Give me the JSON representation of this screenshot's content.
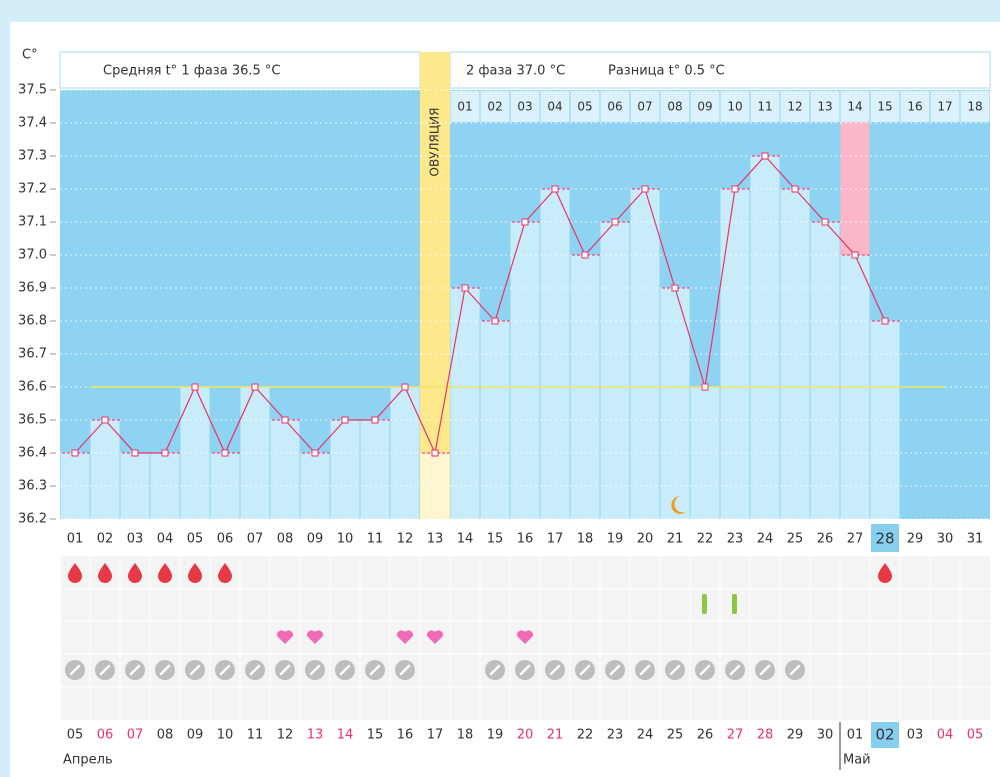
{
  "chart_data": {
    "type": "line",
    "y_label": "C°",
    "categories": [
      "01",
      "02",
      "03",
      "04",
      "05",
      "06",
      "07",
      "08",
      "09",
      "10",
      "11",
      "12",
      "13",
      "14",
      "15",
      "16",
      "17",
      "18",
      "19",
      "20",
      "21",
      "22",
      "23",
      "24",
      "25",
      "26",
      "27",
      "28",
      "29",
      "30",
      "31"
    ],
    "values": [
      36.4,
      36.5,
      36.4,
      36.4,
      36.6,
      36.4,
      36.6,
      36.5,
      36.4,
      36.5,
      36.5,
      36.6,
      36.4,
      36.9,
      36.8,
      37.1,
      37.2,
      37.0,
      37.1,
      37.2,
      36.9,
      36.6,
      37.2,
      37.3,
      37.2,
      37.1,
      37.0,
      36.8,
      null,
      null,
      null
    ],
    "color": "#e8336a",
    "ylim": [
      36.2,
      37.5
    ],
    "yticks": [
      37.5,
      37.4,
      37.3,
      37.2,
      37.1,
      {
        "value": 37.0,
        "label": "37.0"
      },
      36.9,
      36.8,
      36.7,
      36.6,
      36.5,
      36.4,
      36.3,
      36.2
    ],
    "grid": true,
    "coverline": 36.6,
    "ovulation_day": "13",
    "ovulation_label": "ОВУЛЯЦИЯ",
    "phase2_days": [
      "01",
      "02",
      "03",
      "04",
      "05",
      "06",
      "07",
      "08",
      "09",
      "10",
      "11",
      "12",
      "13",
      "14",
      "15",
      "16",
      "17",
      "18"
    ],
    "phase2_highlight": "14",
    "today": "28"
  },
  "header": {
    "phase1": "Средняя t° 1 фаза 36.5 °C",
    "phase2": "2 фаза 37.0 °C",
    "difference": "Разница t° 0.5 °C"
  },
  "marks": {
    "menstruation": [
      "01",
      "02",
      "03",
      "04",
      "05",
      "06",
      "28"
    ],
    "tests": [
      "22",
      "23"
    ],
    "intercourse": [
      "08",
      "09",
      "12",
      "13",
      "16"
    ],
    "pills": [
      "01",
      "02",
      "03",
      "04",
      "05",
      "06",
      "07",
      "08",
      "09",
      "10",
      "11",
      "12",
      "15",
      "16",
      "17",
      "18",
      "19",
      "20",
      "21",
      "22",
      "23",
      "24",
      "25"
    ]
  },
  "calendar": [
    {
      "name": "Апрель",
      "dates": [
        {
          "label": "05",
          "red": false
        },
        {
          "label": "06",
          "red": true
        },
        {
          "label": "07",
          "red": true
        },
        {
          "label": "08",
          "red": false
        },
        {
          "label": "09",
          "red": false
        },
        {
          "label": "10",
          "red": false
        },
        {
          "label": "11",
          "red": false
        },
        {
          "label": "12",
          "red": false
        },
        {
          "label": "13",
          "red": true
        },
        {
          "label": "14",
          "red": true
        },
        {
          "label": "15",
          "red": false
        },
        {
          "label": "16",
          "red": false
        },
        {
          "label": "17",
          "red": false
        },
        {
          "label": "18",
          "red": false
        },
        {
          "label": "19",
          "red": false
        },
        {
          "label": "20",
          "red": true
        },
        {
          "label": "21",
          "red": true
        },
        {
          "label": "22",
          "red": false
        },
        {
          "label": "23",
          "red": false
        },
        {
          "label": "24",
          "red": false
        },
        {
          "label": "25",
          "red": false
        },
        {
          "label": "26",
          "red": false
        },
        {
          "label": "27",
          "red": true
        },
        {
          "label": "28",
          "red": true
        },
        {
          "label": "29",
          "red": false
        },
        {
          "label": "30",
          "red": false
        }
      ]
    },
    {
      "name": "Май",
      "dates": [
        {
          "label": "01",
          "red": false
        },
        {
          "label": "02",
          "red": false
        },
        {
          "label": "03",
          "red": false
        },
        {
          "label": "04",
          "red": true
        },
        {
          "label": "05",
          "red": true
        }
      ]
    }
  ]
}
